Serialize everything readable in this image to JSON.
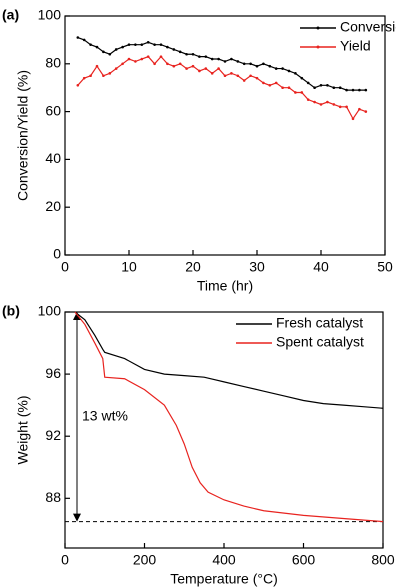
{
  "chart_data": [
    {
      "type": "line",
      "panel_label": "(a)",
      "xlabel": "Time (hr)",
      "ylabel": "Conversion/Yield (%)",
      "xlim": [
        0,
        50
      ],
      "xticks": [
        0,
        10,
        20,
        30,
        40,
        50
      ],
      "ylim": [
        0,
        100
      ],
      "yticks": [
        0,
        20,
        40,
        60,
        80,
        100
      ],
      "legend": "upper right",
      "markers": true,
      "x": [
        2,
        3,
        4,
        5,
        6,
        7,
        8,
        9,
        10,
        11,
        12,
        13,
        14,
        15,
        16,
        17,
        18,
        19,
        20,
        21,
        22,
        23,
        24,
        25,
        26,
        27,
        28,
        29,
        30,
        31,
        32,
        33,
        34,
        35,
        36,
        37,
        38,
        39,
        40,
        41,
        42,
        43,
        44,
        45,
        46,
        47
      ],
      "series": [
        {
          "name": "Conversion",
          "color": "#000000",
          "values": [
            91,
            90,
            88,
            87,
            85,
            84,
            86,
            87,
            88,
            88,
            88,
            89,
            88,
            88,
            87,
            86,
            85,
            84,
            84,
            83,
            83,
            82,
            82,
            81,
            82,
            81,
            80,
            80,
            79,
            80,
            79,
            78,
            78,
            77,
            76,
            74,
            72,
            70,
            71,
            71,
            70,
            70,
            69,
            69,
            69,
            69
          ]
        },
        {
          "name": "Yield",
          "color": "#e8231f",
          "values": [
            71,
            74,
            75,
            79,
            75,
            76,
            78,
            80,
            82,
            81,
            82,
            83,
            80,
            83,
            80,
            79,
            80,
            78,
            79,
            77,
            78,
            76,
            78,
            75,
            76,
            75,
            73,
            75,
            74,
            72,
            71,
            72,
            70,
            70,
            68,
            68,
            65,
            64,
            63,
            64,
            63,
            62,
            62,
            57,
            61,
            60
          ]
        }
      ]
    },
    {
      "type": "line",
      "panel_label": "(b)",
      "xlabel": "Temperature (°C)",
      "ylabel": "Weight (%)",
      "xlim": [
        0,
        800
      ],
      "xticks": [
        0,
        200,
        400,
        600,
        800
      ],
      "ylim": [
        84.8,
        100
      ],
      "yticks": [
        88,
        92,
        96,
        100
      ],
      "legend": "upper right",
      "markers": false,
      "hline": 86.5,
      "annotation": "13 wt%",
      "series": [
        {
          "name": "Fresh catalyst",
          "color": "#000000",
          "x": [
            25,
            50,
            75,
            95,
            100,
            150,
            200,
            250,
            300,
            350,
            400,
            450,
            500,
            550,
            600,
            650,
            700,
            750,
            800
          ],
          "values": [
            100,
            99.5,
            98.5,
            97.6,
            97.4,
            97,
            96.3,
            96,
            95.9,
            95.8,
            95.5,
            95.2,
            94.9,
            94.6,
            94.3,
            94.1,
            94,
            93.9,
            93.8
          ]
        },
        {
          "name": "Spent catalyst",
          "color": "#e8231f",
          "x": [
            25,
            50,
            75,
            95,
            100,
            150,
            200,
            250,
            280,
            300,
            320,
            340,
            360,
            400,
            450,
            500,
            600,
            700,
            800
          ],
          "values": [
            100,
            99.2,
            98,
            97,
            95.8,
            95.7,
            95,
            94,
            92.7,
            91.5,
            90,
            89,
            88.4,
            87.9,
            87.5,
            87.2,
            86.9,
            86.7,
            86.5
          ]
        }
      ]
    }
  ]
}
